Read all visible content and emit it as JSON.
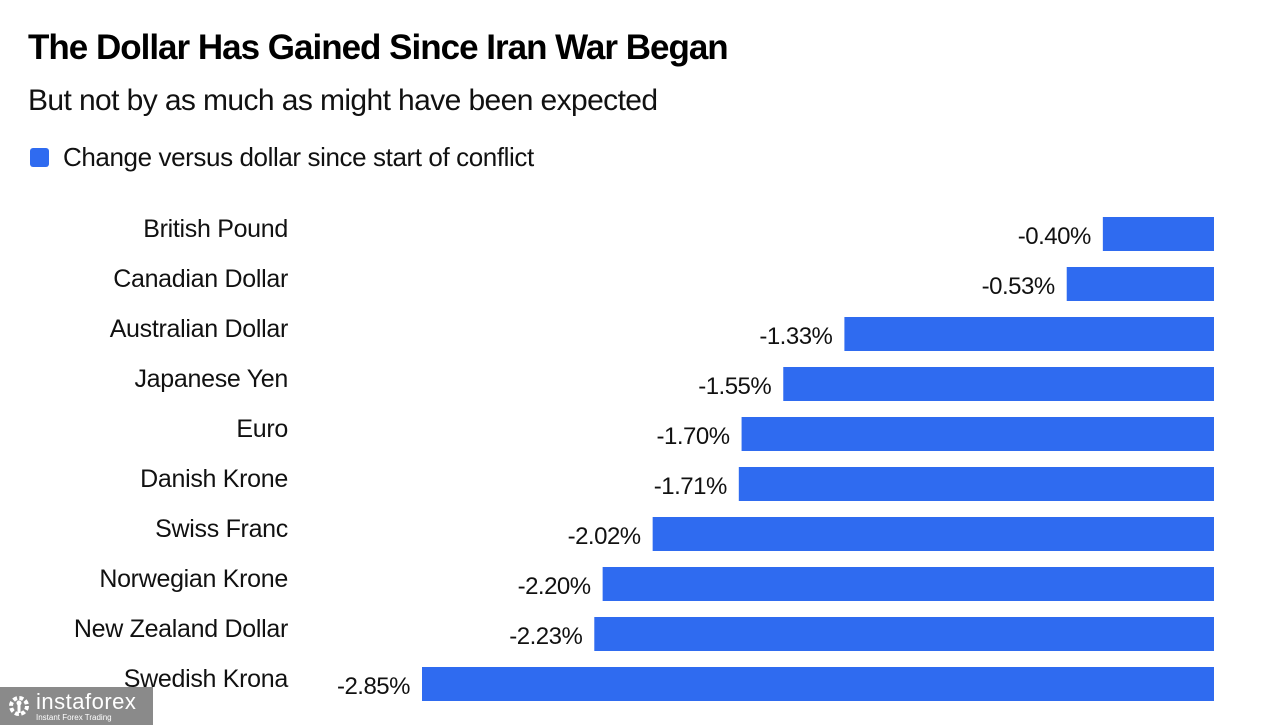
{
  "chart_data": {
    "type": "bar",
    "orientation": "horizontal",
    "title": "The Dollar Has Gained Since Iran War Began",
    "subtitle": "But not by as much as might have been expected",
    "legend": [
      {
        "label": "Change versus dollar since start of conflict",
        "color": "#2F6BF0"
      }
    ],
    "legend_position": "top-left",
    "categories": [
      "British Pound",
      "Canadian Dollar",
      "Australian Dollar",
      "Japanese Yen",
      "Euro",
      "Danish Krone",
      "Swiss Franc",
      "Norwegian Krone",
      "New Zealand Dollar",
      "Swedish Krona"
    ],
    "values": [
      -0.4,
      -0.53,
      -1.33,
      -1.55,
      -1.7,
      -1.71,
      -2.02,
      -2.2,
      -2.23,
      -2.85
    ],
    "data_labels": [
      "-0.40%",
      "-0.53%",
      "-1.33%",
      "-1.55%",
      "-1.70%",
      "-1.71%",
      "-2.02%",
      "-2.20%",
      "-2.23%",
      "-2.85%"
    ],
    "unit": "%",
    "xlim": [
      -2.85,
      0
    ],
    "grid": false,
    "bar_color": "#2F6BF0"
  },
  "watermark": {
    "brand": "instaforex",
    "tagline": "Instant Forex Trading"
  }
}
